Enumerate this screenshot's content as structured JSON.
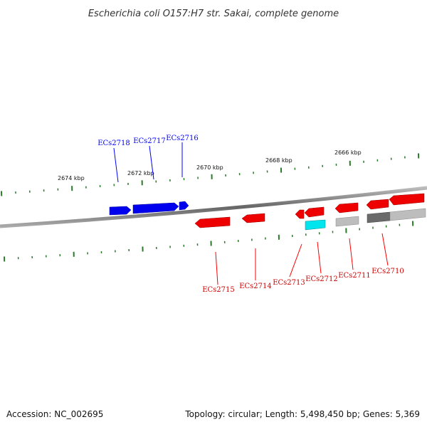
{
  "title": "Escherichia coli O157:H7 str. Sakai, complete genome",
  "footer": {
    "accession": "Accession: NC_002695",
    "topology": "Topology: circular; Length: 5,498,450 bp; Genes: 5,369"
  },
  "colors": {
    "forward": "#0000ff",
    "reverse": "#ff0000",
    "tick": "#2a7a2a",
    "backbone": "#777777",
    "cyan": "#00e5ee",
    "gray": "#bdbdbd",
    "darkgray": "#6a6a6a"
  },
  "kbp_labels": [
    "2674 kbp",
    "2672 kbp",
    "2670 kbp",
    "2668 kbp",
    "2666 kbp"
  ],
  "genes_forward": [
    "ECs2718",
    "ECs2717",
    "ECs2716"
  ],
  "genes_reverse": [
    "ECs2715",
    "ECs2714",
    "ECs2713",
    "ECs2712",
    "ECs2711",
    "ECs2710"
  ]
}
